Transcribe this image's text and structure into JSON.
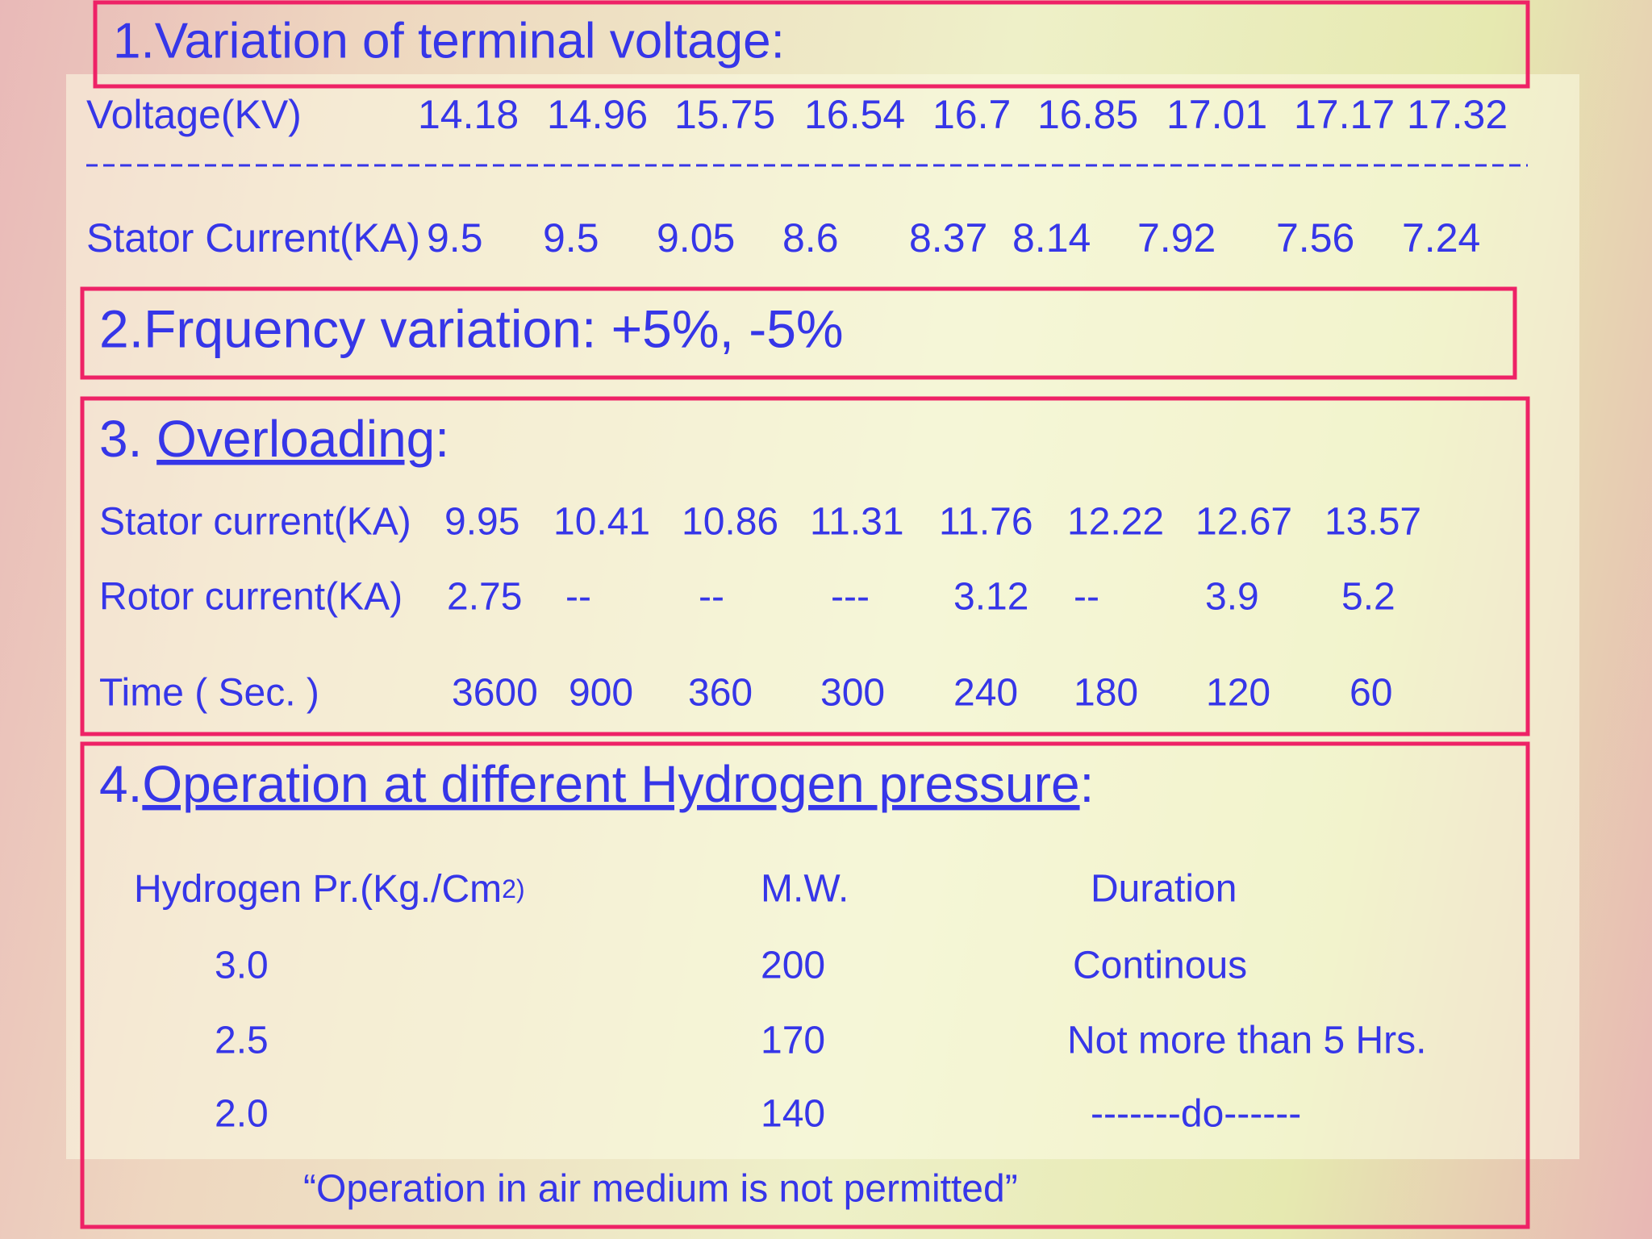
{
  "section1": {
    "title": "1.Variation of terminal voltage:",
    "voltage": {
      "label": "Voltage(KV)",
      "values": [
        "14.18",
        "14.96",
        "15.75",
        "16.54",
        "16.7",
        "16.85",
        "17.01",
        "17.17",
        "17.32"
      ]
    },
    "stator_current": {
      "label": "Stator Current(KA)",
      "values": [
        "9.5",
        "9.5",
        "9.05",
        "8.6",
        "8.37",
        "8.14",
        "7.92",
        "7.56",
        "7.24"
      ]
    }
  },
  "section2": {
    "title": "2.Frquency variation:  +5%, -5%"
  },
  "section3": {
    "title_prefix": "3. ",
    "title_underlined": "Overloading",
    "title_suffix": ":",
    "stator_current": {
      "label": "Stator current(KA)",
      "values": [
        "9.95",
        "10.41",
        "10.86",
        "11.31",
        "11.76",
        "12.22",
        "12.67",
        "13.57"
      ]
    },
    "rotor_current": {
      "label": "Rotor current(KA)",
      "values": [
        "2.75",
        "--",
        "--",
        "---",
        "3.12",
        "--",
        "3.9",
        "5.2"
      ]
    },
    "time": {
      "label": "Time ( Sec. )",
      "values": [
        "3600",
        "900",
        "360",
        "300",
        "240",
        "180",
        "120",
        "60"
      ]
    }
  },
  "section4": {
    "title_prefix": "4.",
    "title_underlined": "Operation at different Hydrogen pressure",
    "title_suffix": ":",
    "table": {
      "header": [
        "Hydrogen Pr.(Kg./Cm",
        "2)",
        "M.W.",
        "Duration"
      ],
      "rows": [
        [
          "3.0",
          "200",
          "Continous"
        ],
        [
          "2.5",
          "170",
          "Not more than 5 Hrs."
        ],
        [
          "2.0",
          "140",
          "-------do------"
        ]
      ]
    },
    "note": "“Operation in air medium is not permitted”"
  }
}
